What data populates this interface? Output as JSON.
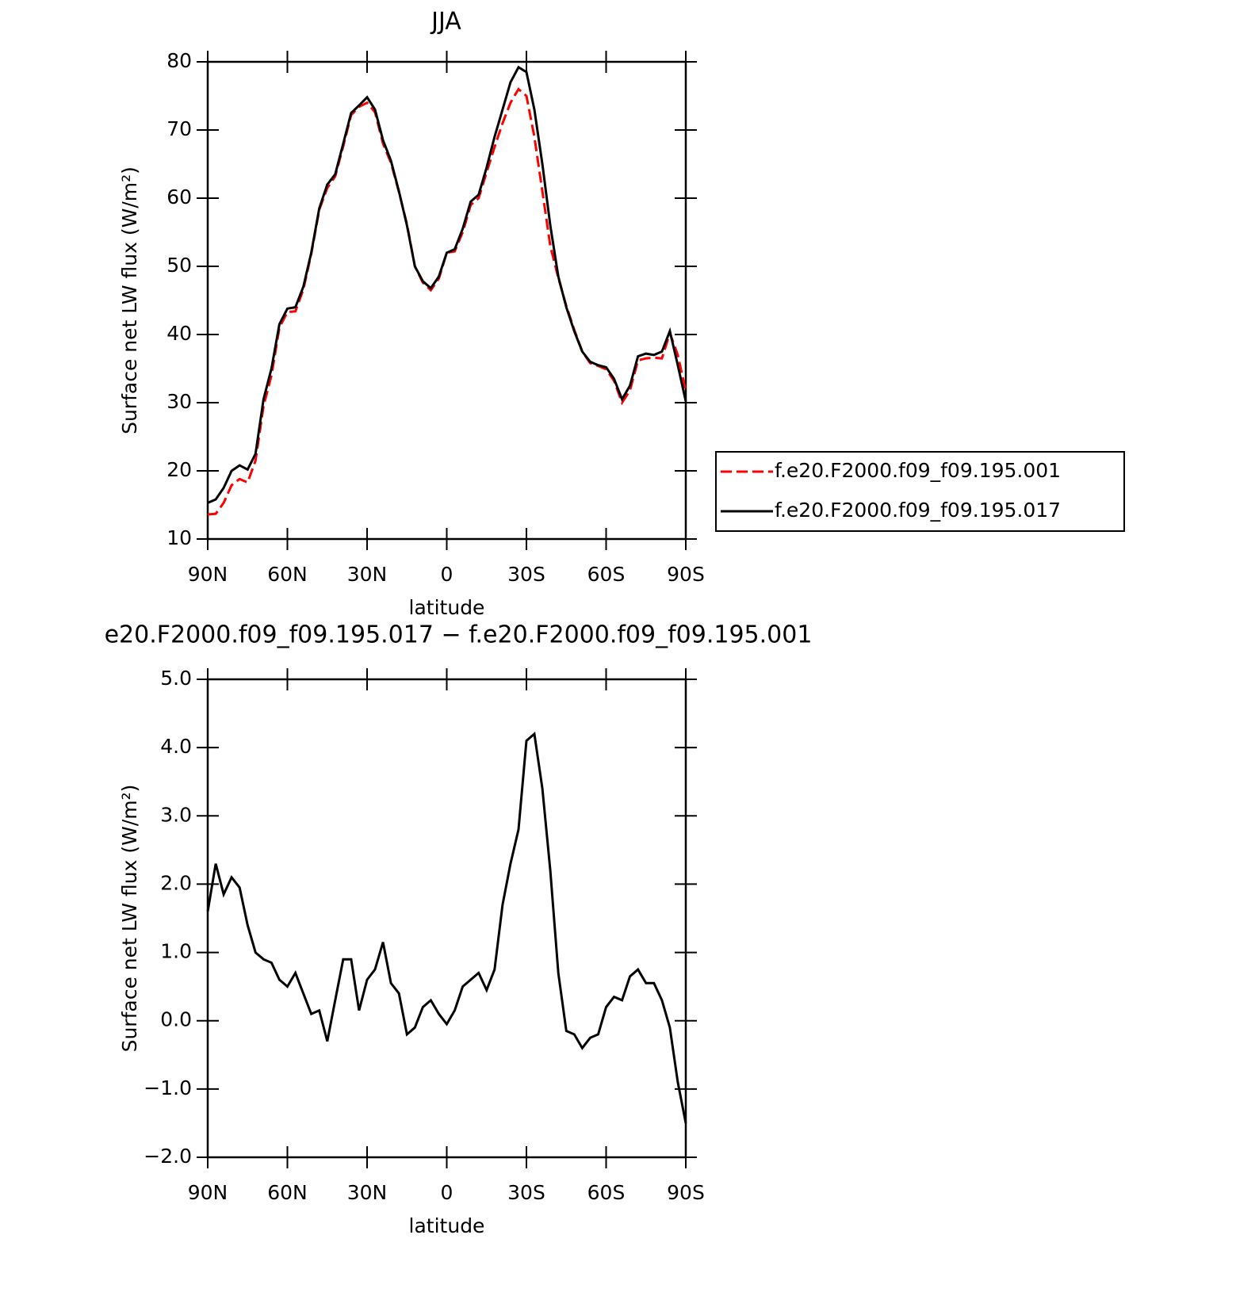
{
  "chart_data": [
    {
      "type": "line",
      "title": "JJA",
      "xlabel": "latitude",
      "ylabel": "Surface net LW flux (W/m²)",
      "x": [
        90,
        87,
        84,
        81,
        78,
        75,
        72,
        69,
        66,
        63,
        60,
        57,
        54,
        51,
        48,
        45,
        42,
        39,
        36,
        33,
        30,
        27,
        24,
        21,
        18,
        15,
        12,
        9,
        6,
        3,
        0,
        -3,
        -6,
        -9,
        -12,
        -15,
        -18,
        -21,
        -24,
        -27,
        -30,
        -33,
        -36,
        -39,
        -42,
        -45,
        -48,
        -51,
        -54,
        -57,
        -60,
        -63,
        -66,
        -69,
        -72,
        -75,
        -78,
        -81,
        -84,
        -87,
        -90
      ],
      "series": [
        {
          "name": "f.e20.F2000.f09_f09.195.001",
          "color": "#ff0000",
          "dashed": true,
          "values": [
            13.6,
            13.7,
            15.3,
            17.9,
            18.8,
            18.3,
            21.5,
            29.5,
            34,
            41,
            43.3,
            43.4,
            46.6,
            51.8,
            58.3,
            61.5,
            63.2,
            67.6,
            72.2,
            73.4,
            74,
            72.6,
            68,
            65.2,
            60.9,
            56.2,
            50,
            47.6,
            46.5,
            48.2,
            52,
            52.2,
            55,
            59,
            60,
            63.8,
            67.5,
            71,
            74,
            76,
            75,
            69,
            61,
            53,
            48.3,
            44.2,
            40.7,
            37.5,
            35.8,
            35.4,
            34.9,
            33.2,
            30,
            31.8,
            36.2,
            36.5,
            36.6,
            36.5,
            40.2,
            37,
            31.7
          ]
        },
        {
          "name": "f.e20.F2000.f09_f09.195.017",
          "color": "#000000",
          "dashed": false,
          "values": [
            15.3,
            15.8,
            17.5,
            20,
            20.8,
            20.2,
            22.5,
            30.5,
            35,
            41.5,
            43.8,
            44,
            47,
            52,
            58.5,
            62,
            63.5,
            68,
            72.5,
            73.6,
            74.8,
            73,
            68.5,
            65.5,
            61,
            56,
            50,
            47.8,
            46.8,
            48.5,
            52,
            52.5,
            55.5,
            59.5,
            60.5,
            64.5,
            69,
            73,
            77,
            79.2,
            78.5,
            73,
            65,
            56,
            48.5,
            44,
            40.5,
            37.5,
            36,
            35.5,
            35.2,
            33.5,
            30.5,
            32.5,
            36.8,
            37.2,
            37,
            37.5,
            40.5,
            35.5,
            30.2
          ]
        }
      ],
      "xlim": [
        90,
        -90
      ],
      "xticks": [
        {
          "value": 90,
          "label": "90N"
        },
        {
          "value": 60,
          "label": "60N"
        },
        {
          "value": 30,
          "label": "30N"
        },
        0,
        {
          "value": -30,
          "label": "30S"
        },
        {
          "value": -60,
          "label": "60S"
        },
        {
          "value": -90,
          "label": "90S"
        }
      ],
      "ylim": [
        10,
        80
      ],
      "yticks": [
        10,
        20,
        30,
        40,
        50,
        60,
        70,
        80
      ],
      "legend": "right"
    },
    {
      "type": "line",
      "title": "e20.F2000.f09_f09.195.017 − f.e20.F2000.f09_f09.195.001",
      "xlabel": "latitude",
      "ylabel": "Surface net LW flux (W/m²)",
      "x": [
        90,
        87,
        84,
        81,
        78,
        75,
        72,
        69,
        66,
        63,
        60,
        57,
        54,
        51,
        48,
        45,
        42,
        39,
        36,
        33,
        30,
        27,
        24,
        21,
        18,
        15,
        12,
        9,
        6,
        3,
        0,
        -3,
        -6,
        -9,
        -12,
        -15,
        -18,
        -21,
        -24,
        -27,
        -30,
        -33,
        -36,
        -39,
        -42,
        -45,
        -48,
        -51,
        -54,
        -57,
        -60,
        -63,
        -66,
        -69,
        -72,
        -75,
        -78,
        -81,
        -84,
        -87,
        -90
      ],
      "series": [
        {
          "color": "#000000",
          "dashed": false,
          "values": [
            1.6,
            2.3,
            1.85,
            2.1,
            1.95,
            1.4,
            1.0,
            0.9,
            0.85,
            0.6,
            0.5,
            0.7,
            0.4,
            0.1,
            0.15,
            -0.3,
            0.3,
            0.9,
            0.9,
            0.15,
            0.6,
            0.75,
            1.15,
            0.55,
            0.4,
            -0.2,
            -0.1,
            0.2,
            0.3,
            0.1,
            -0.05,
            0.15,
            0.5,
            0.6,
            0.7,
            0.45,
            0.75,
            1.7,
            2.3,
            2.8,
            4.1,
            4.2,
            3.4,
            2.2,
            0.7,
            -0.15,
            -0.2,
            -0.4,
            -0.25,
            -0.2,
            0.2,
            0.35,
            0.3,
            0.65,
            0.75,
            0.55,
            0.55,
            0.3,
            -0.1,
            -0.9,
            -1.5
          ]
        }
      ],
      "xlim": [
        90,
        -90
      ],
      "xticks": [
        {
          "value": 90,
          "label": "90N"
        },
        {
          "value": 60,
          "label": "60N"
        },
        {
          "value": 30,
          "label": "30N"
        },
        0,
        {
          "value": -30,
          "label": "30S"
        },
        {
          "value": -60,
          "label": "60S"
        },
        {
          "value": -90,
          "label": "90S"
        }
      ],
      "ylim": [
        -2,
        5
      ],
      "yticks": [
        {
          "value": -2,
          "label": "−2.0"
        },
        {
          "value": -1,
          "label": "−1.0"
        },
        {
          "value": 0,
          "label": "0.0"
        },
        {
          "value": 1,
          "label": "1.0"
        },
        {
          "value": 2,
          "label": "2.0"
        },
        {
          "value": 3,
          "label": "3.0"
        },
        {
          "value": 4,
          "label": "4.0"
        },
        {
          "value": 5,
          "label": "5.0"
        }
      ]
    }
  ]
}
